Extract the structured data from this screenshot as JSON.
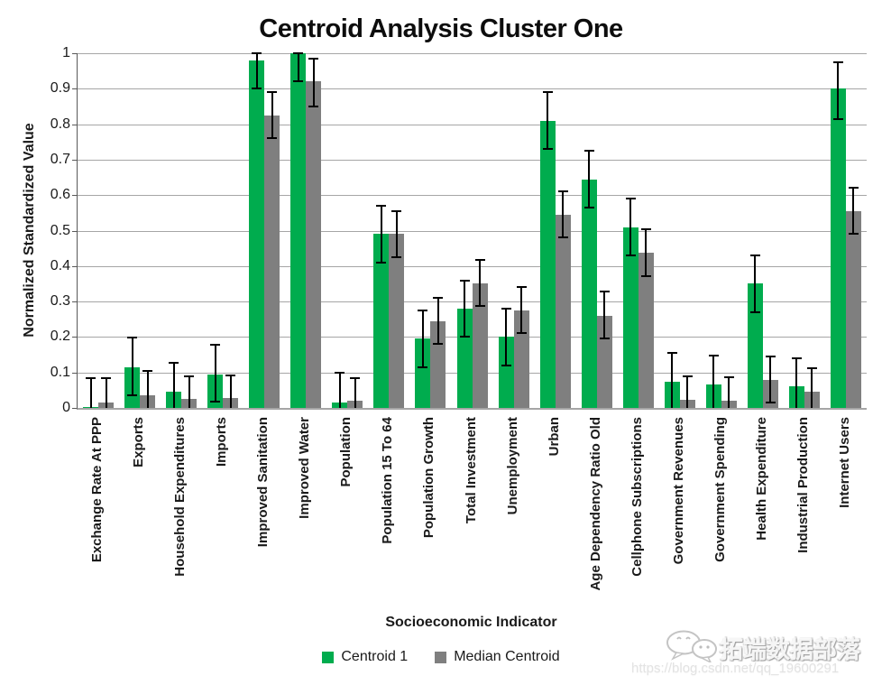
{
  "chart_data": {
    "type": "bar",
    "title": "Centroid Analysis Cluster One",
    "xlabel": "Socioeconomic Indicator",
    "ylabel": "Normalized Standardized Value",
    "ylim": [
      0,
      1
    ],
    "ytick_labels": [
      "0",
      "0.1",
      "0.2",
      "0.3",
      "0.4",
      "0.5",
      "0.6",
      "0.7",
      "0.8",
      "0.9",
      "1"
    ],
    "grid": true,
    "grid_color": "#A6A6A6",
    "error_bar_color": "#000000",
    "legend_position": "bottom",
    "categories": [
      "Exchange Rate At PPP",
      "Exports",
      "Household Expenditures",
      "Imports",
      "Improved Sanitation",
      "Improved Water",
      "Population",
      "Population 15 To 64",
      "Population Growth",
      "Total Investment",
      "Unemployment",
      "Urban",
      "Age Dependency Ratio Old",
      "Cellphone Subscriptions",
      "Government Revenues",
      "Government Spending",
      "Health Expenditure",
      "Industrial Production",
      "Internet Users"
    ],
    "series": [
      {
        "name": "Centroid 1",
        "color": "#00AC4E",
        "values": [
          0.002,
          0.115,
          0.045,
          0.095,
          0.98,
          1.0,
          0.015,
          0.49,
          0.195,
          0.28,
          0.2,
          0.81,
          0.645,
          0.51,
          0.073,
          0.065,
          0.35,
          0.06,
          0.9
        ],
        "err_lo": [
          0,
          0.035,
          0,
          0.018,
          0.9,
          0.92,
          0,
          0.41,
          0.115,
          0.2,
          0.12,
          0.73,
          0.565,
          0.43,
          0,
          0,
          0.27,
          0,
          0.815
        ],
        "err_hi": [
          0.085,
          0.198,
          0.127,
          0.177,
          1.0,
          1.0,
          0.1,
          0.57,
          0.275,
          0.36,
          0.28,
          0.89,
          0.725,
          0.59,
          0.155,
          0.147,
          0.43,
          0.14,
          0.975
        ]
      },
      {
        "name": "Median Centroid",
        "color": "#7F7F7F",
        "values": [
          0.015,
          0.035,
          0.025,
          0.027,
          0.825,
          0.92,
          0.02,
          0.49,
          0.245,
          0.35,
          0.275,
          0.545,
          0.26,
          0.437,
          0.023,
          0.02,
          0.08,
          0.045,
          0.555
        ],
        "err_lo": [
          0,
          0,
          0,
          0,
          0.76,
          0.85,
          0,
          0.425,
          0.18,
          0.288,
          0.21,
          0.48,
          0.197,
          0.372,
          0,
          0,
          0.015,
          0,
          0.49
        ],
        "err_hi": [
          0.085,
          0.105,
          0.09,
          0.092,
          0.89,
          0.985,
          0.085,
          0.555,
          0.31,
          0.418,
          0.34,
          0.61,
          0.327,
          0.503,
          0.088,
          0.087,
          0.145,
          0.113,
          0.62
        ]
      }
    ]
  },
  "watermark": {
    "brand": "拓端数据部落",
    "url": "https://blog.csdn.net/qq_19600291"
  }
}
